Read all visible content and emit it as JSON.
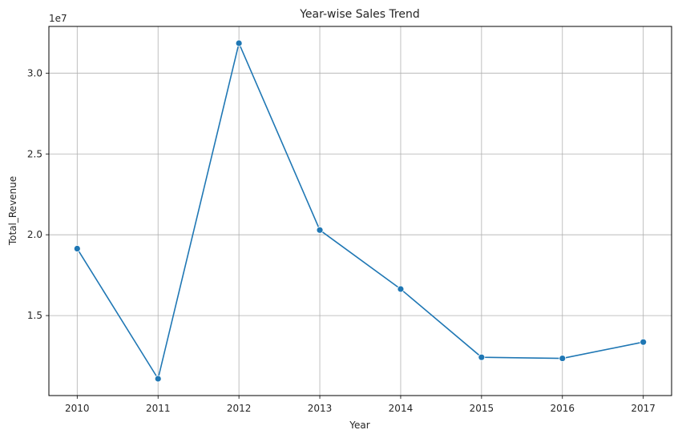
{
  "chart_data": {
    "type": "line",
    "title": "Year-wise Sales Trend",
    "xlabel": "Year",
    "ylabel": "Total_Revenue",
    "y_offset_label": "1e7",
    "x": [
      2010,
      2011,
      2012,
      2013,
      2014,
      2015,
      2016,
      2017
    ],
    "x_ticks": [
      "2010",
      "2011",
      "2012",
      "2013",
      "2014",
      "2015",
      "2016",
      "2017"
    ],
    "y_ticks": [
      15000000,
      20000000,
      25000000,
      30000000
    ],
    "y_tick_labels": [
      "1.5",
      "2.0",
      "2.5",
      "3.0"
    ],
    "series": [
      {
        "values": [
          19140000,
          11090000,
          31850000,
          20290000,
          16640000,
          12420000,
          12350000,
          13360000
        ],
        "color": "#1f77b4",
        "marker": "circle"
      }
    ],
    "xlim": [
      2009.65,
      2017.35
    ],
    "ylim": [
      10050000,
      32890000
    ],
    "grid": true
  }
}
